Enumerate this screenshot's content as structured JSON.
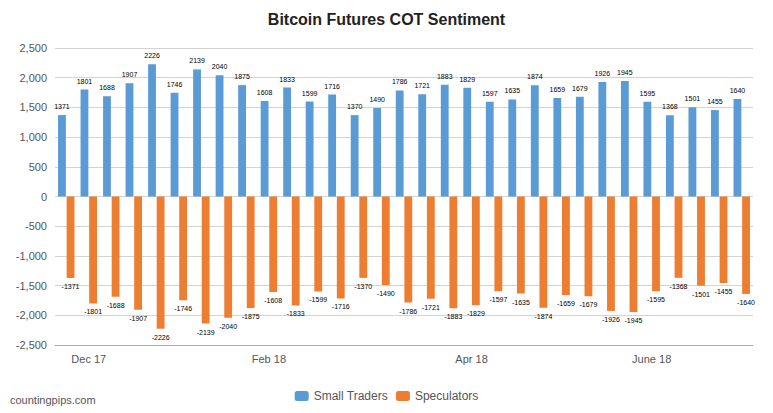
{
  "chart_data": {
    "type": "bar",
    "title": "Bitcoin Futures COT Sentiment",
    "categories": [
      null,
      "Dec 17",
      null,
      null,
      null,
      null,
      null,
      null,
      null,
      "Feb 18",
      null,
      null,
      null,
      null,
      null,
      null,
      null,
      null,
      "Apr 18",
      null,
      null,
      null,
      null,
      null,
      null,
      null,
      "June 18",
      null,
      null,
      null,
      null
    ],
    "series": [
      {
        "name": "Small Traders",
        "color": "#5B9BD5",
        "values": [
          1371,
          1801,
          1688,
          1907,
          2226,
          1746,
          2139,
          2040,
          1875,
          1608,
          1833,
          1599,
          1716,
          1370,
          1490,
          1786,
          1721,
          1883,
          1829,
          1597,
          1635,
          1874,
          1659,
          1679,
          1926,
          1945,
          1595,
          1368,
          1501,
          1455,
          1640
        ]
      },
      {
        "name": "Speculators",
        "color": "#ED7D31",
        "values": [
          -1371,
          -1801,
          -1688,
          -1907,
          -2226,
          -1746,
          -2139,
          -2040,
          -1875,
          -1608,
          -1833,
          -1599,
          -1716,
          -1370,
          -1490,
          -1786,
          -1721,
          -1883,
          -1829,
          -1597,
          -1635,
          -1874,
          -1659,
          -1679,
          -1926,
          -1945,
          -1595,
          -1368,
          -1501,
          -1455,
          -1640
        ]
      }
    ],
    "ylim": [
      -2500,
      2500
    ],
    "yticks": [
      -2500,
      -2000,
      -1500,
      -1000,
      -500,
      0,
      500,
      1000,
      1500,
      2000,
      2500
    ],
    "grid": true,
    "legend": "bottom",
    "data_labels": true,
    "annotations": [
      "countingpips.com"
    ]
  }
}
